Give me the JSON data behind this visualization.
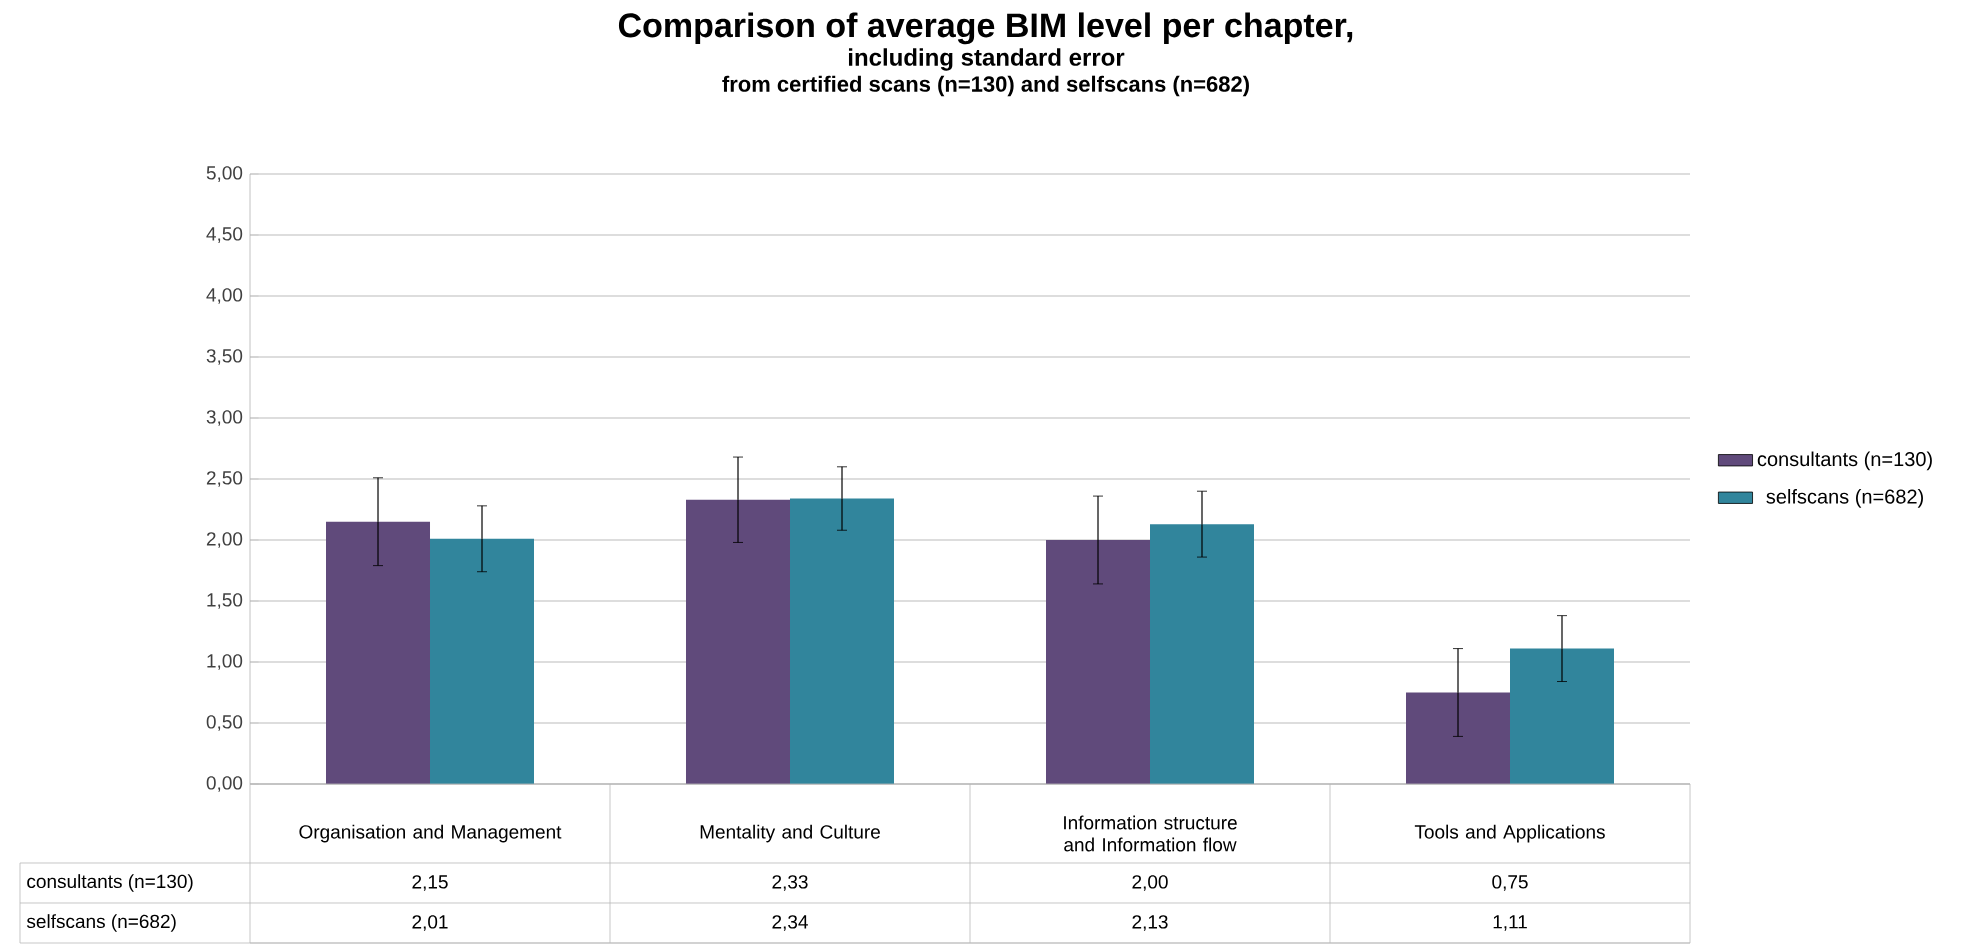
{
  "chart_data": {
    "type": "bar",
    "title": "Comparison of average BIM level per chapter,",
    "subtitle": "including standard error",
    "annotations": [
      "from certified scans (n=130) and selfscans (n=682)"
    ],
    "categories": [
      "Organisation and Management",
      "Mentality and Culture",
      "Information structure and Information flow",
      "Tools and Applications"
    ],
    "series": [
      {
        "name": "consultants (n=130)",
        "color": "#604a7b",
        "values": [
          2.15,
          2.33,
          2.0,
          0.75
        ],
        "errors": [
          0.36,
          0.35,
          0.36,
          0.36
        ],
        "value_labels": [
          "2,15",
          "2,33",
          "2,00",
          "0,75"
        ]
      },
      {
        "name": "selfscans (n=682)",
        "color": "#31859c",
        "values": [
          2.01,
          2.34,
          2.13,
          1.11
        ],
        "errors": [
          0.27,
          0.26,
          0.27,
          0.27
        ],
        "value_labels": [
          "2,01",
          "2,34",
          "2,13",
          "1,11"
        ]
      }
    ],
    "ylim": [
      0,
      5
    ],
    "yticks": [
      {
        "value": 0,
        "label": "0,00"
      },
      {
        "value": 0.5,
        "label": "0,50"
      },
      {
        "value": 1,
        "label": "1,00"
      },
      {
        "value": 1.5,
        "label": "1,50"
      },
      {
        "value": 2,
        "label": "2,00"
      },
      {
        "value": 2.5,
        "label": "2,50"
      },
      {
        "value": 3,
        "label": "3,00"
      },
      {
        "value": 3.5,
        "label": "3,50"
      },
      {
        "value": 4,
        "label": "4,00"
      },
      {
        "value": 4.5,
        "label": "4,50"
      },
      {
        "value": 5,
        "label": "5,00"
      }
    ],
    "grid": "y",
    "legend": "right"
  }
}
